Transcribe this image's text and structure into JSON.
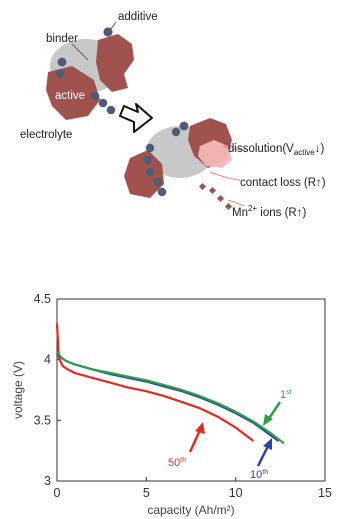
{
  "schematic": {
    "labels": {
      "binder": "binder",
      "additive": "additive",
      "active": "active",
      "electrolyte": "electrolyte",
      "dissolution_main": "dissolution(V",
      "dissolution_sub": "active",
      "dissolution_end": "↓)",
      "contact_loss": "contact loss (R↑)",
      "mn_base": "Mn",
      "mn_sup": "2+",
      "mn_rest": " ions (R↑)"
    },
    "colors": {
      "active": "#a0524f",
      "binder": "#c8c8c8",
      "additive": "#4d5d76",
      "dissolution": "#f3b8b8"
    }
  },
  "chart_data": {
    "type": "line",
    "xlabel": "capacity (Ah/m²)",
    "ylabel": "voltage (V)",
    "xlim": [
      0,
      15
    ],
    "ylim": [
      3,
      4.5
    ],
    "xticks": [
      "0",
      "5",
      "10",
      "15"
    ],
    "yticks": [
      "3",
      "3.5",
      "4",
      "4.5"
    ],
    "series": [
      {
        "name_base": "1",
        "name_sup": "st",
        "color": "#2e9e4a",
        "x": [
          0,
          0.2,
          0.5,
          1,
          2,
          3,
          4,
          5,
          6,
          7,
          8,
          9,
          10,
          11,
          12,
          12.7
        ],
        "y": [
          4.07,
          4.02,
          3.99,
          3.96,
          3.92,
          3.89,
          3.86,
          3.83,
          3.79,
          3.75,
          3.7,
          3.64,
          3.57,
          3.49,
          3.39,
          3.31
        ]
      },
      {
        "name_base": "10",
        "name_sup": "th",
        "color": "#2f3fa8",
        "x": [
          0,
          0.2,
          0.5,
          1,
          2,
          3,
          4,
          5,
          6,
          7,
          8,
          9,
          10,
          11,
          12.4
        ],
        "y": [
          4.07,
          4.02,
          3.99,
          3.96,
          3.92,
          3.88,
          3.85,
          3.82,
          3.78,
          3.74,
          3.69,
          3.63,
          3.56,
          3.48,
          3.33
        ]
      },
      {
        "name_base": "50",
        "name_sup": "th",
        "color": "#e02a23",
        "x": [
          0,
          0.1,
          0.3,
          0.6,
          1,
          2,
          3,
          4,
          5,
          6,
          7,
          8,
          9,
          10,
          11
        ],
        "y": [
          4.3,
          4.02,
          3.95,
          3.92,
          3.89,
          3.85,
          3.81,
          3.77,
          3.74,
          3.7,
          3.65,
          3.6,
          3.53,
          3.44,
          3.33
        ]
      }
    ]
  }
}
